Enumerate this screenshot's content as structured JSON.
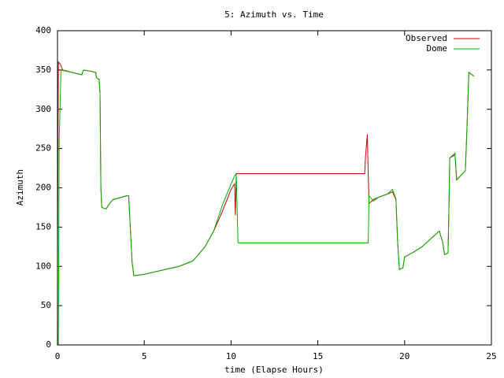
{
  "chart_data": {
    "type": "line",
    "title": "5: Azimuth vs. Time",
    "xlabel": "time (Elapse Hours)",
    "ylabel": "Azimuth",
    "xlim": [
      0,
      25
    ],
    "xticks": [
      0,
      5,
      10,
      15,
      20,
      25
    ],
    "ylim": [
      0,
      400
    ],
    "yticks": [
      0,
      50,
      100,
      150,
      200,
      250,
      300,
      350,
      400
    ],
    "legend": "upper right",
    "grid": false,
    "series": [
      {
        "name": "Observed",
        "color": "#d00000",
        "x": [
          0,
          0.05,
          0.15,
          0.3,
          1.0,
          1.4,
          1.5,
          2.0,
          2.2,
          2.25,
          2.4,
          2.45,
          2.5,
          2.55,
          2.8,
          3.0,
          3.2,
          4.0,
          4.1,
          4.3,
          4.4,
          5,
          6,
          7,
          7.8,
          8,
          8.5,
          9,
          9.5,
          10,
          10.2,
          10.25,
          10.3,
          17.7,
          17.75,
          17.85,
          17.9,
          17.95,
          18.2,
          18.5,
          19,
          19.3,
          19.5,
          19.6,
          19.7,
          19.9,
          20,
          20.5,
          21,
          21.5,
          22,
          22.2,
          22.3,
          22.5,
          22.55,
          22.6,
          22.9,
          23,
          23.5,
          23.6,
          23.7,
          24
        ],
        "values": [
          90,
          360,
          358,
          350,
          346,
          344,
          350,
          348,
          347,
          340,
          338,
          320,
          200,
          175,
          173,
          180,
          185,
          190,
          190,
          105,
          88,
          90,
          95,
          100,
          107,
          112,
          125,
          145,
          170,
          198,
          205,
          165,
          218,
          218,
          240,
          268,
          220,
          180,
          185,
          188,
          192,
          195,
          185,
          130,
          96,
          98,
          112,
          118,
          125,
          135,
          145,
          130,
          115,
          117,
          170,
          238,
          242,
          210,
          222,
          280,
          347,
          342
        ]
      },
      {
        "name": "Dome",
        "color": "#00b000",
        "x": [
          0.05,
          0.1,
          0.2,
          1.0,
          1.4,
          1.5,
          2.0,
          2.2,
          2.25,
          2.4,
          2.45,
          2.5,
          2.55,
          2.8,
          3.0,
          3.2,
          4.0,
          4.1,
          4.3,
          4.4,
          5,
          6,
          7,
          7.8,
          8,
          8.5,
          9,
          9.5,
          10,
          10.2,
          10.3,
          10.4,
          17.9,
          17.95,
          18.2,
          18.5,
          19,
          19.3,
          19.5,
          19.6,
          19.7,
          19.9,
          20,
          20.5,
          21,
          21.5,
          22,
          22.2,
          22.3,
          22.5,
          22.55,
          22.6,
          22.9,
          23,
          23.5,
          23.6,
          23.7,
          24
        ],
        "values": [
          0,
          260,
          350,
          346,
          344,
          350,
          348,
          347,
          340,
          338,
          320,
          200,
          175,
          173,
          180,
          185,
          190,
          190,
          105,
          88,
          90,
          95,
          100,
          107,
          112,
          125,
          145,
          178,
          205,
          215,
          218,
          130,
          130,
          190,
          183,
          188,
          192,
          198,
          186,
          130,
          96,
          98,
          112,
          118,
          125,
          135,
          145,
          130,
          115,
          117,
          170,
          238,
          244,
          210,
          222,
          280,
          347,
          342
        ]
      }
    ]
  }
}
